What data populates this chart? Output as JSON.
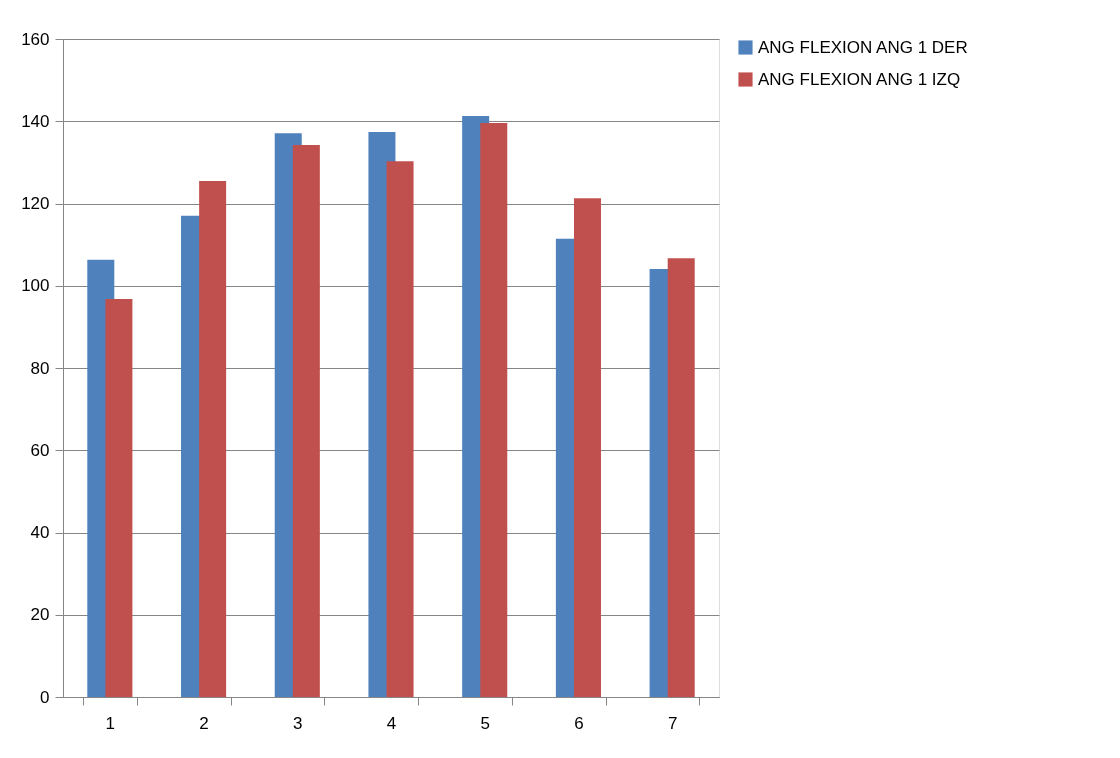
{
  "chart_data": {
    "type": "bar",
    "categories": [
      "1",
      "2",
      "3",
      "4",
      "5",
      "6",
      "7"
    ],
    "series": [
      {
        "name": "ANG FLEXION ANG 1 DER",
        "color": "#4f81bd",
        "values": [
          106.3,
          117,
          137.1,
          137.4,
          141.3,
          111.4,
          104.1
        ]
      },
      {
        "name": "ANG FLEXION ANG 1 IZQ",
        "color": "#c0504d",
        "values": [
          96.8,
          125.5,
          134.2,
          130.3,
          139.6,
          121.3,
          106.7
        ]
      }
    ],
    "ylim": [
      0,
      160
    ],
    "yticks": [
      0,
      20,
      40,
      60,
      80,
      100,
      120,
      140,
      160
    ],
    "grid": "y",
    "legend": "right"
  }
}
